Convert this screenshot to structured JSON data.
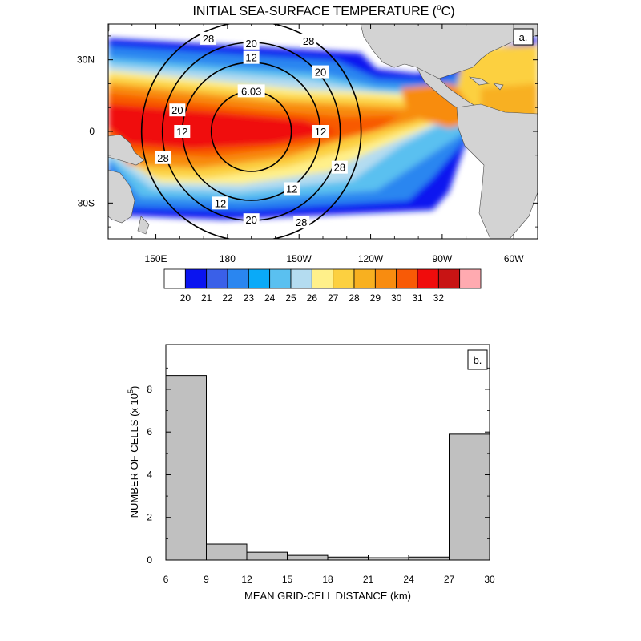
{
  "chart_data": [
    {
      "type": "heatmap",
      "title": "INITIAL SEA-SURFACE TEMPERATURE (",
      "title_unit": "o",
      "title_suffix": "C)",
      "panel_label": "a.",
      "x_ticks": [
        "150E",
        "180",
        "150W",
        "120W",
        "90W",
        "60W"
      ],
      "y_ticks": [
        "30N",
        "0",
        "30S"
      ],
      "x_range_lon": [
        130,
        310
      ],
      "y_range_lat": [
        -45,
        45
      ],
      "colorbar": {
        "levels": [
          "20",
          "21",
          "22",
          "23",
          "24",
          "25",
          "26",
          "27",
          "28",
          "29",
          "30",
          "31",
          "32"
        ],
        "colors": [
          "#ffffff",
          "#0a14f0",
          "#3a60e8",
          "#2a86f0",
          "#0aaaf8",
          "#5ac0f0",
          "#b4dcf0",
          "#fff08a",
          "#fcd040",
          "#f8b020",
          "#f88c10",
          "#f85a06",
          "#f00c0c",
          "#c81414",
          "#ffaab0"
        ]
      },
      "contours": {
        "center_lon": 190,
        "center_lat": 0,
        "labels": [
          "6.03",
          "12",
          "20",
          "28"
        ],
        "label_positions": [
          {
            "value": "6.03",
            "lon": 190,
            "lat": 17
          },
          {
            "value": "12",
            "lon": 190,
            "lat": 31
          },
          {
            "value": "12",
            "lon": 161,
            "lat": 0
          },
          {
            "value": "12",
            "lon": 219,
            "lat": 0
          },
          {
            "value": "12",
            "lon": 207,
            "lat": -24
          },
          {
            "value": "12",
            "lon": 177,
            "lat": -30
          },
          {
            "value": "20",
            "lon": 190,
            "lat": 37
          },
          {
            "value": "20",
            "lon": 219,
            "lat": 25
          },
          {
            "value": "20",
            "lon": 159,
            "lat": 9
          },
          {
            "value": "20",
            "lon": 190,
            "lat": -37
          },
          {
            "value": "28",
            "lon": 172,
            "lat": 39
          },
          {
            "value": "28",
            "lon": 214,
            "lat": 38
          },
          {
            "value": "28",
            "lon": 153,
            "lat": -11
          },
          {
            "value": "28",
            "lon": 227,
            "lat": -15
          },
          {
            "value": "28",
            "lon": 211,
            "lat": -38
          }
        ]
      }
    },
    {
      "type": "bar",
      "panel_label": "b.",
      "xlabel": "MEAN GRID-CELL DISTANCE (km)",
      "ylabel": "NUMBER OF CELLS (x 10",
      "ylabel_exp": "5",
      "ylabel_suffix": ")",
      "bin_edges": [
        6,
        9,
        12,
        15,
        18,
        21,
        24,
        27,
        30
      ],
      "values": [
        8.65,
        0.75,
        0.37,
        0.22,
        0.14,
        0.11,
        0.14,
        5.9
      ],
      "x_ticks": [
        "6",
        "9",
        "12",
        "15",
        "18",
        "21",
        "24",
        "27",
        "30"
      ],
      "y_ticks": [
        "0",
        "2",
        "4",
        "6",
        "8"
      ],
      "xlim": [
        6,
        30
      ],
      "ylim": [
        0,
        10.1
      ],
      "bar_color": "#c0c0c0"
    }
  ]
}
